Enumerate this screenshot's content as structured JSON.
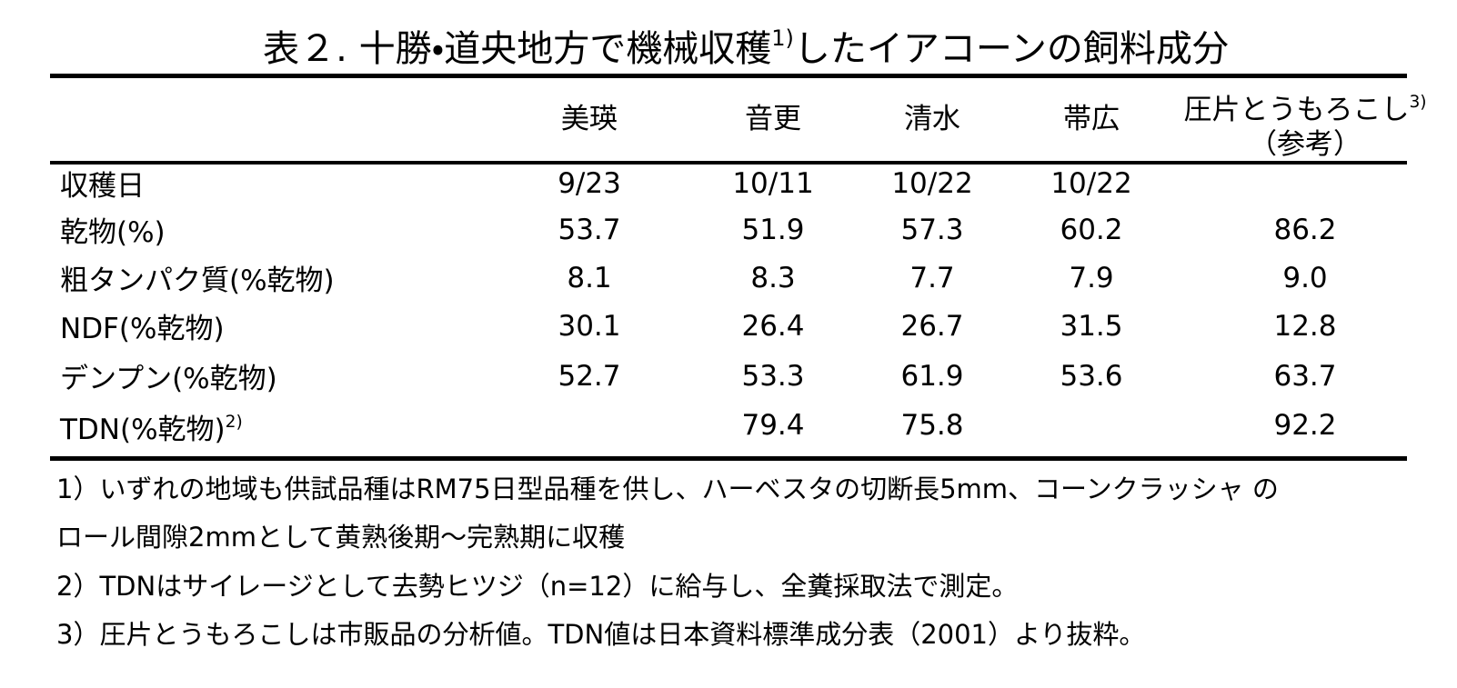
{
  "title": {
    "main": "表２. 十勝・道央地方で機械収穫",
    "sup": "1)",
    "rest": "したイアコーンの飼料成分"
  },
  "table": {
    "headers": [
      {
        "text": "美瑛"
      },
      {
        "text": "音更"
      },
      {
        "text": "清水"
      },
      {
        "text": "帯広"
      },
      {
        "text": "圧片とうもろこし",
        "sup": "3)",
        "sub": "（参考）"
      }
    ],
    "rows": [
      {
        "label": "収穫日",
        "cells": [
          "9/23",
          "10/11",
          "10/22",
          "10/22",
          null
        ]
      },
      {
        "label": "乾物(%)",
        "cells": [
          "53.7",
          "51.9",
          "57.3",
          "60.2",
          "86.2"
        ]
      },
      {
        "label": "粗タンパク質(%乾物)",
        "cells": [
          "8.1",
          "8.3",
          "7.7",
          "7.9",
          "9.0"
        ]
      },
      {
        "label": "NDF(%乾物)",
        "cells": [
          "30.1",
          "26.4",
          "26.7",
          "31.5",
          "12.8"
        ]
      },
      {
        "label": "デンプン(%乾物)",
        "cells": [
          "52.7",
          "53.3",
          "61.9",
          "53.6",
          "63.7"
        ]
      },
      {
        "label": "TDN(%乾物)",
        "sup": "2)",
        "cells": [
          null,
          "79.4",
          "75.8",
          null,
          "92.2"
        ]
      }
    ]
  },
  "notes": [
    "1）いずれの地域も供試品種はRM75日型品種を供し、ハーベスタの切断長5mm、コーンクラッシャ の",
    "ロール間隙2mmとして黄熟後期～完熟期に収穫",
    "2）TDNはサイレージとして去勢ヒツジ（n=12）に給与し、全糞採取法で測定。",
    "3）圧片とうもろこしは市販品の分析値。TDN値は日本資料標準成分表（2001）より抜粋。"
  ]
}
